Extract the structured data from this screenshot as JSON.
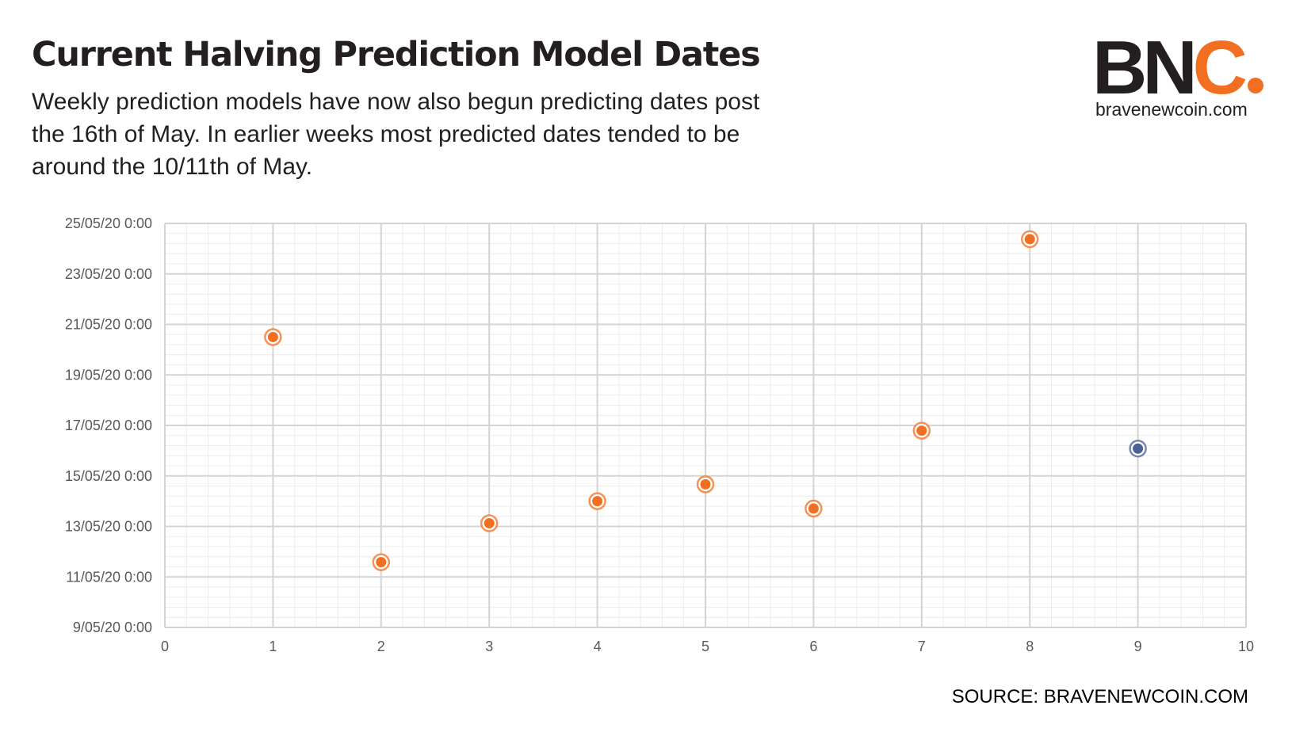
{
  "header": {
    "title": "Current Halving Prediction Model Dates",
    "subtitle": "Weekly prediction models have now also begun predicting dates post the 16th of May. In earlier weeks most predicted dates tended to be around the 10/11th of May."
  },
  "logo": {
    "mark_bn": "BN",
    "mark_c": "C",
    "url": "bravenewcoin.com"
  },
  "footer": {
    "source": "SOURCE: BRAVENEWCOIN.COM"
  },
  "colors": {
    "orange": "#f26f21",
    "blue": "#4a6294",
    "text": "#231f20",
    "grid_major": "#d4d4d4",
    "grid_minor": "#ececec"
  },
  "chart_data": {
    "type": "scatter",
    "title": "",
    "xlabel": "",
    "ylabel": "",
    "xlim": [
      0,
      10
    ],
    "ylim": [
      "2020-05-09T00:00",
      "2020-05-25T00:00"
    ],
    "x_ticks": [
      "0",
      "1",
      "2",
      "3",
      "4",
      "5",
      "6",
      "7",
      "8",
      "9",
      "10"
    ],
    "y_ticks": [
      "9/05/20 0:00",
      "11/05/20 0:00",
      "13/05/20 0:00",
      "15/05/20 0:00",
      "17/05/20 0:00",
      "19/05/20 0:00",
      "21/05/20 0:00",
      "23/05/20 0:00",
      "25/05/20 0:00"
    ],
    "grid": true,
    "points": [
      {
        "x": 1,
        "y": "2020-05-20T12:00",
        "color": "#f26f21"
      },
      {
        "x": 2,
        "y": "2020-05-11T14:00",
        "color": "#f26f21"
      },
      {
        "x": 3,
        "y": "2020-05-13T03:00",
        "color": "#f26f21"
      },
      {
        "x": 4,
        "y": "2020-05-14T00:00",
        "color": "#f26f21"
      },
      {
        "x": 5,
        "y": "2020-05-14T16:00",
        "color": "#f26f21"
      },
      {
        "x": 6,
        "y": "2020-05-13T17:00",
        "color": "#f26f21"
      },
      {
        "x": 7,
        "y": "2020-05-16T19:00",
        "color": "#f26f21"
      },
      {
        "x": 8,
        "y": "2020-05-24T09:00",
        "color": "#f26f21"
      },
      {
        "x": 9,
        "y": "2020-05-16T02:00",
        "color": "#4a6294"
      }
    ]
  }
}
